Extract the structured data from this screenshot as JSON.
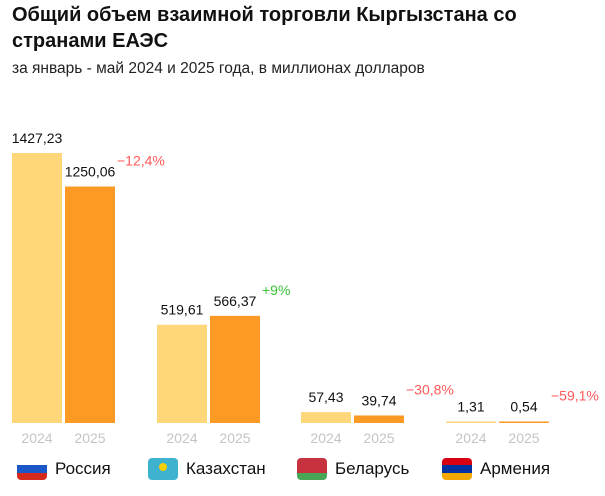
{
  "chart_data": {
    "type": "bar",
    "title": "Общий объем взаимной торговли Кыргызстана со странами ЕАЭС",
    "subtitle": "за январь - май 2024 и 2025 года, в миллионах долларов",
    "categories": [
      "Россия",
      "Казахстан",
      "Беларусь",
      "Армения"
    ],
    "series": [
      {
        "name": "2024",
        "color": "#FED77B",
        "values": [
          1427.23,
          519.61,
          57.43,
          1.31
        ],
        "labels": [
          "1427,23",
          "519,61",
          "57,43",
          "1,31"
        ]
      },
      {
        "name": "2025",
        "color": "#FD9925",
        "values": [
          1250.06,
          566.37,
          39.74,
          0.54
        ],
        "labels": [
          "1250,06",
          "566,37",
          "39,74",
          "0,54"
        ]
      }
    ],
    "changes": [
      {
        "text": "−12,4%",
        "color": "#FF5A5A"
      },
      {
        "text": "+9%",
        "color": "#3BC43B"
      },
      {
        "text": "−30,8%",
        "color": "#FF5A5A"
      },
      {
        "text": "−59,1%",
        "color": "#FF5A5A"
      }
    ],
    "ylim": [
      0,
      1427.23
    ],
    "grid": false
  },
  "legend": [
    {
      "label": "Россия",
      "icon": "russia-flag-icon",
      "colors": [
        "#FFFFFF",
        "#1C57C8",
        "#D52B1E"
      ]
    },
    {
      "label": "Казахстан",
      "icon": "kazakhstan-flag-icon",
      "colors": [
        "#3DB3D0"
      ]
    },
    {
      "label": "Беларусь",
      "icon": "belarus-flag-icon",
      "colors": [
        "#C8313E",
        "#C8313E",
        "#4AA657"
      ]
    },
    {
      "label": "Армения",
      "icon": "armenia-flag-icon",
      "colors": [
        "#D90012",
        "#0033A0",
        "#F2A800"
      ]
    }
  ]
}
